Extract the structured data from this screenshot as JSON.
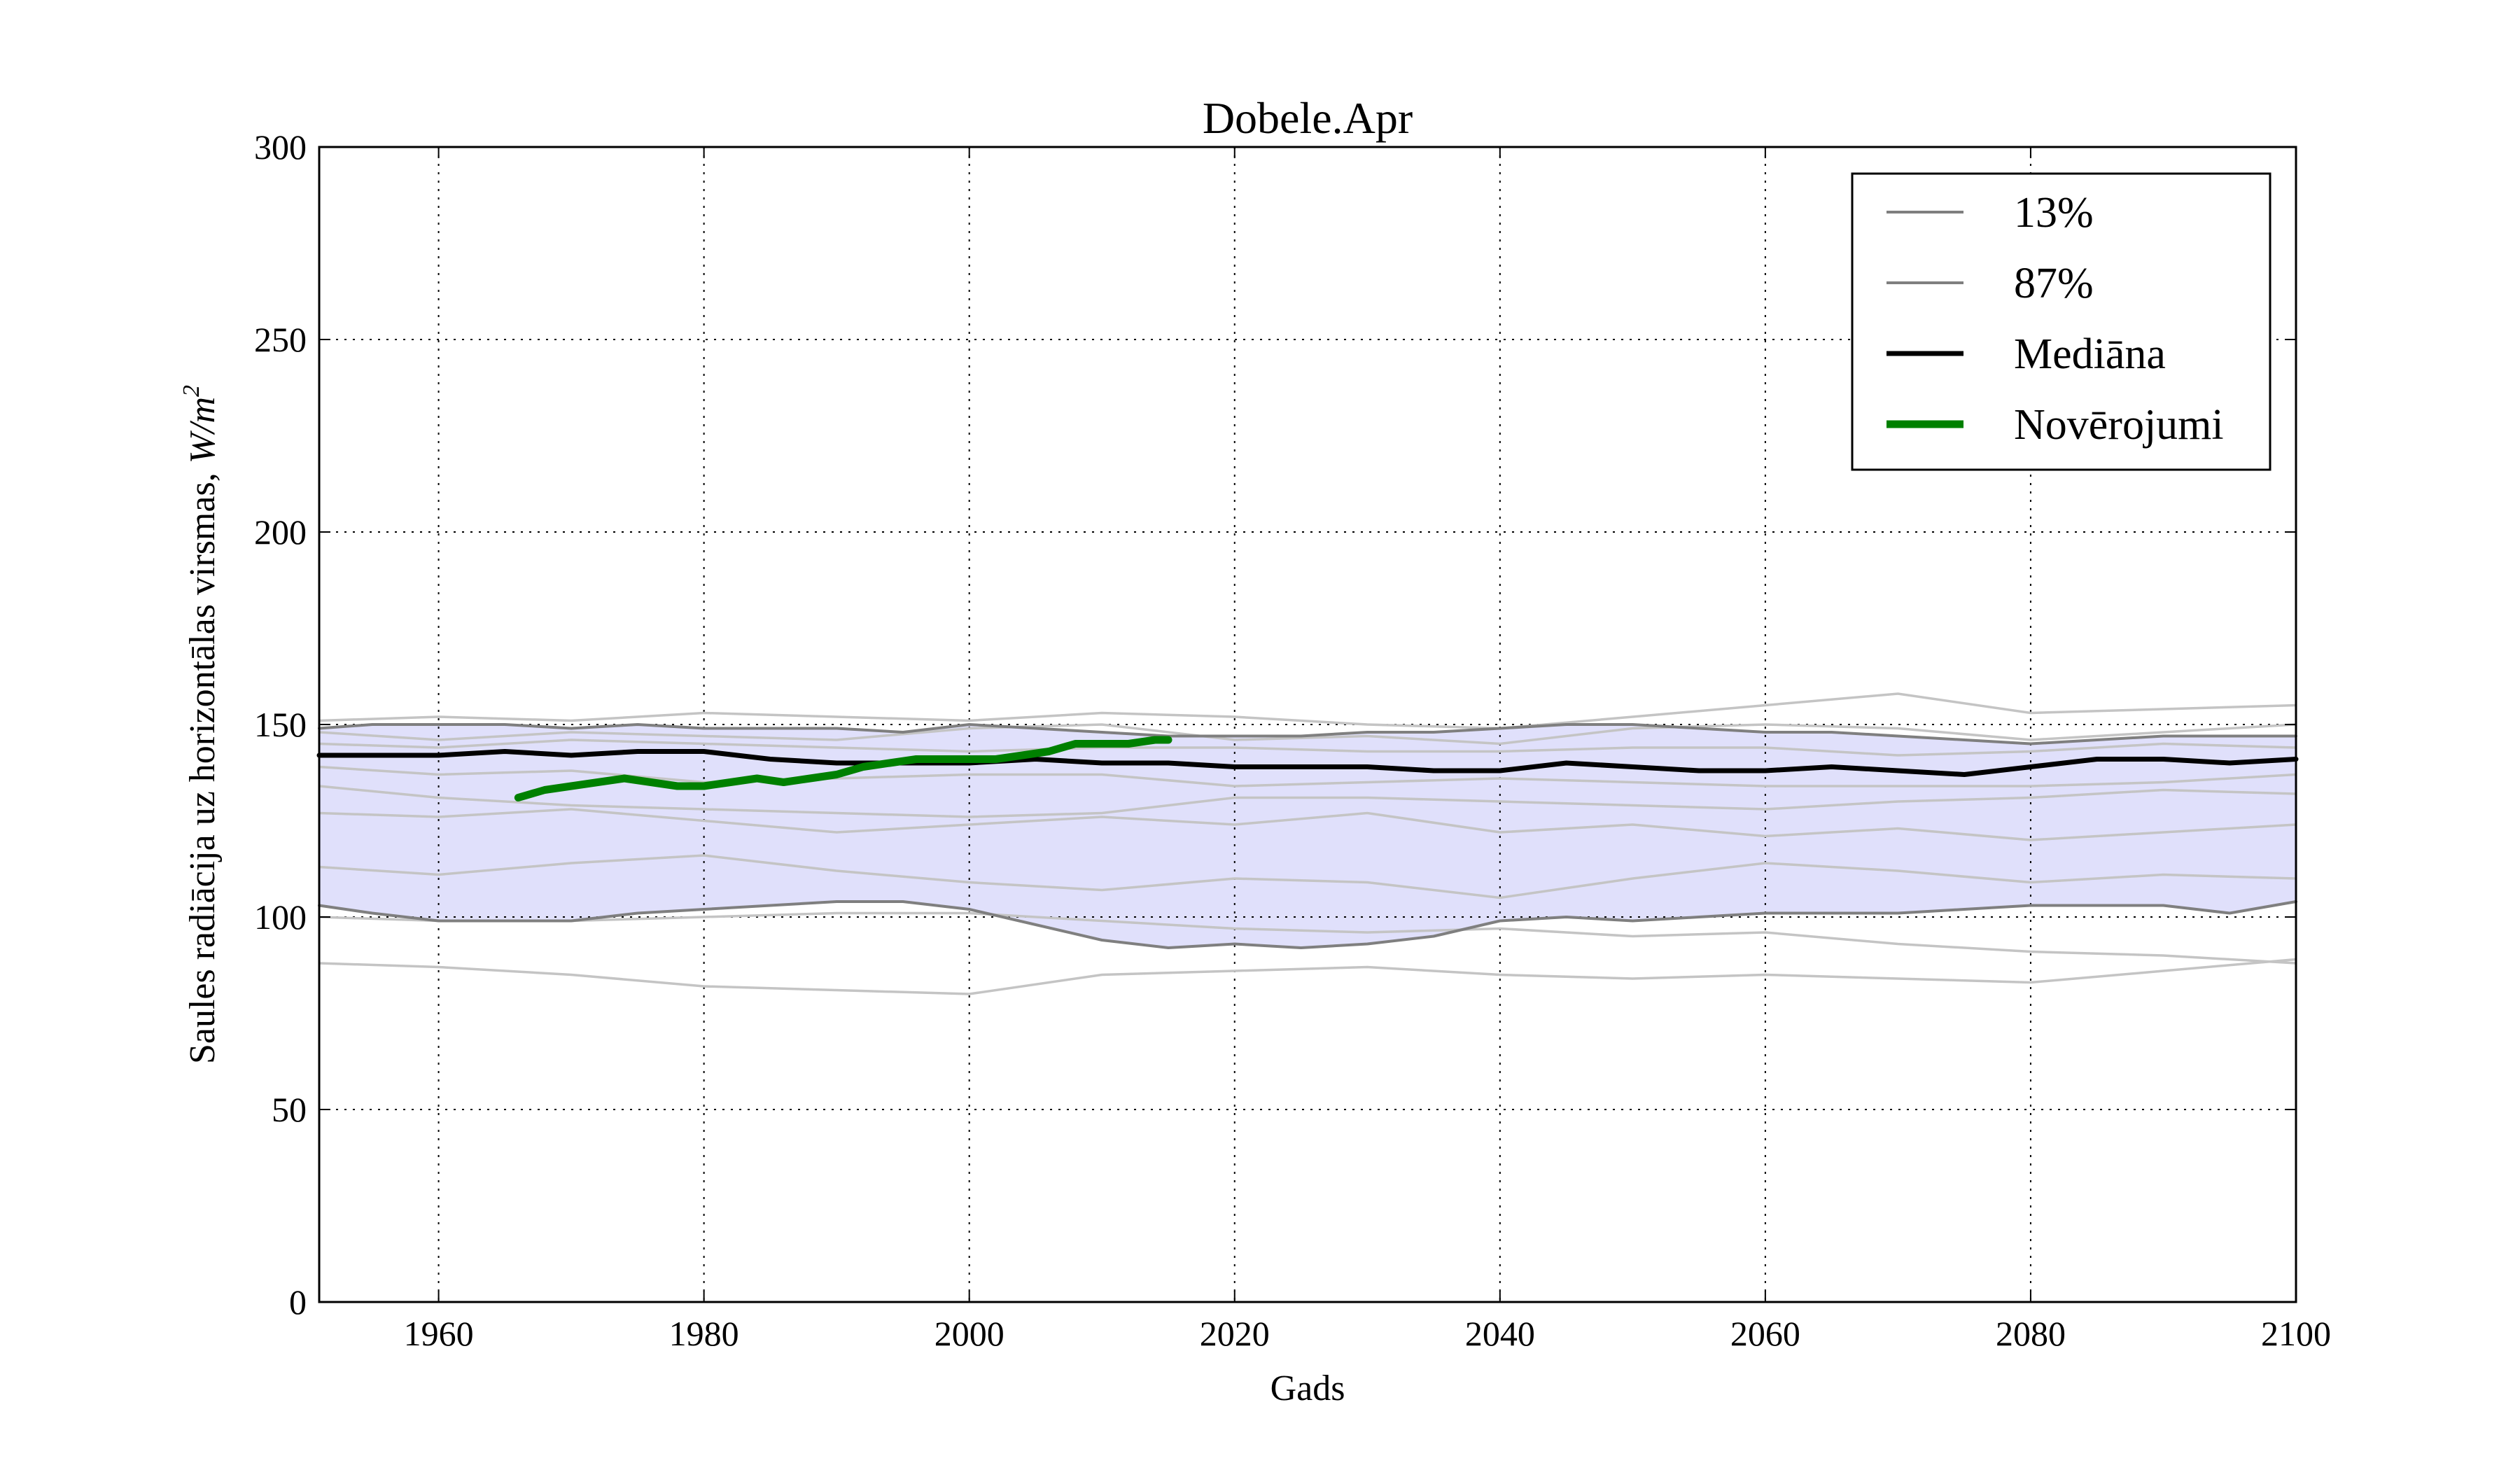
{
  "chart_data": {
    "type": "line",
    "title": "Dobele.Apr",
    "xlabel": "Gads",
    "ylabel": "Saules radiācija uz horizontālas virsmas, ",
    "ylabel_unit": "W/m",
    "ylabel_unit_exp": "2",
    "xlim": [
      1951,
      2100
    ],
    "ylim": [
      0,
      300
    ],
    "xticks": [
      "1960",
      "1980",
      "2000",
      "2020",
      "2040",
      "2060",
      "2080",
      "2100"
    ],
    "yticks": [
      "0",
      "50",
      "100",
      "150",
      "200",
      "250",
      "300"
    ],
    "grid": true,
    "legend_position": "top-right",
    "colors": {
      "band": "#e0e0fb",
      "percentile": "#7f7f7f",
      "median": "#000000",
      "observations": "#008000",
      "ensemble": "#c4c4c4"
    },
    "legend": [
      "13%",
      "87%",
      "Mediāna",
      "Novērojumi"
    ],
    "band_x": [
      1951,
      1955,
      1960,
      1965,
      1970,
      1975,
      1980,
      1985,
      1990,
      1995,
      2000,
      2005,
      2010,
      2015,
      2020,
      2025,
      2030,
      2035,
      2040,
      2045,
      2050,
      2055,
      2060,
      2065,
      2070,
      2075,
      2080,
      2085,
      2090,
      2095,
      2100
    ],
    "band_low": [
      103,
      101,
      99,
      99,
      99,
      101,
      102,
      103,
      104,
      104,
      102,
      98,
      94,
      92,
      93,
      92,
      93,
      95,
      99,
      100,
      99,
      100,
      101,
      101,
      101,
      102,
      103,
      103,
      103,
      101,
      104
    ],
    "band_high": [
      149,
      150,
      150,
      150,
      149,
      150,
      149,
      149,
      149,
      148,
      150,
      149,
      148,
      147,
      147,
      147,
      148,
      148,
      149,
      150,
      150,
      149,
      148,
      148,
      147,
      146,
      145,
      146,
      147,
      147,
      147
    ],
    "series": [
      {
        "name": "13%",
        "x": [
          1951,
          1955,
          1960,
          1965,
          1970,
          1975,
          1980,
          1985,
          1990,
          1995,
          2000,
          2005,
          2010,
          2015,
          2020,
          2025,
          2030,
          2035,
          2040,
          2045,
          2050,
          2055,
          2060,
          2065,
          2070,
          2075,
          2080,
          2085,
          2090,
          2095,
          2100
        ],
        "values": [
          103,
          101,
          99,
          99,
          99,
          101,
          102,
          103,
          104,
          104,
          102,
          98,
          94,
          92,
          93,
          92,
          93,
          95,
          99,
          100,
          99,
          100,
          101,
          101,
          101,
          102,
          103,
          103,
          103,
          101,
          104
        ]
      },
      {
        "name": "87%",
        "x": [
          1951,
          1955,
          1960,
          1965,
          1970,
          1975,
          1980,
          1985,
          1990,
          1995,
          2000,
          2005,
          2010,
          2015,
          2020,
          2025,
          2030,
          2035,
          2040,
          2045,
          2050,
          2055,
          2060,
          2065,
          2070,
          2075,
          2080,
          2085,
          2090,
          2095,
          2100
        ],
        "values": [
          149,
          150,
          150,
          150,
          149,
          150,
          149,
          149,
          149,
          148,
          150,
          149,
          148,
          147,
          147,
          147,
          148,
          148,
          149,
          150,
          150,
          149,
          148,
          148,
          147,
          146,
          145,
          146,
          147,
          147,
          147
        ]
      },
      {
        "name": "Mediāna",
        "x": [
          1951,
          1955,
          1960,
          1965,
          1970,
          1975,
          1980,
          1985,
          1990,
          1995,
          2000,
          2005,
          2010,
          2015,
          2020,
          2025,
          2030,
          2035,
          2040,
          2045,
          2050,
          2055,
          2060,
          2065,
          2070,
          2075,
          2080,
          2085,
          2090,
          2095,
          2100
        ],
        "values": [
          142,
          142,
          142,
          143,
          142,
          143,
          143,
          141,
          140,
          140,
          140,
          141,
          140,
          140,
          139,
          139,
          139,
          138,
          138,
          140,
          139,
          138,
          138,
          139,
          138,
          137,
          139,
          141,
          141,
          140,
          141
        ]
      },
      {
        "name": "Novērojumi",
        "x": [
          1966,
          1968,
          1970,
          1972,
          1974,
          1976,
          1978,
          1980,
          1982,
          1984,
          1986,
          1988,
          1990,
          1992,
          1994,
          1996,
          1998,
          2000,
          2002,
          2004,
          2006,
          2008,
          2010,
          2012,
          2014,
          2015
        ],
        "values": [
          131,
          133,
          134,
          135,
          136,
          135,
          134,
          134,
          135,
          136,
          135,
          136,
          137,
          139,
          140,
          141,
          141,
          141,
          141,
          142,
          143,
          145,
          145,
          145,
          146,
          146
        ]
      }
    ],
    "ensemble": [
      {
        "x": [
          1951,
          1960,
          1970,
          1980,
          1990,
          2000,
          2010,
          2020,
          2030,
          2040,
          2050,
          2060,
          2070,
          2080,
          2090,
          2100
        ],
        "values": [
          88,
          87,
          85,
          82,
          81,
          80,
          85,
          86,
          87,
          85,
          84,
          85,
          84,
          83,
          86,
          89
        ]
      },
      {
        "x": [
          1951,
          1960,
          1970,
          1980,
          1990,
          2000,
          2010,
          2020,
          2030,
          2040,
          2050,
          2060,
          2070,
          2080,
          2090,
          2100
        ],
        "values": [
          100,
          99,
          99,
          100,
          101,
          101,
          99,
          97,
          96,
          97,
          95,
          96,
          93,
          91,
          90,
          88
        ]
      },
      {
        "x": [
          1951,
          1960,
          1970,
          1980,
          1990,
          2000,
          2010,
          2020,
          2030,
          2040,
          2050,
          2060,
          2070,
          2080,
          2090,
          2100
        ],
        "values": [
          113,
          111,
          114,
          116,
          112,
          109,
          107,
          110,
          109,
          105,
          110,
          114,
          112,
          109,
          111,
          110
        ]
      },
      {
        "x": [
          1951,
          1960,
          1970,
          1980,
          1990,
          2000,
          2010,
          2020,
          2030,
          2040,
          2050,
          2060,
          2070,
          2080,
          2090,
          2100
        ],
        "values": [
          127,
          126,
          128,
          125,
          122,
          124,
          126,
          124,
          127,
          122,
          124,
          121,
          123,
          120,
          122,
          124
        ]
      },
      {
        "x": [
          1951,
          1960,
          1970,
          1980,
          1990,
          2000,
          2010,
          2020,
          2030,
          2040,
          2050,
          2060,
          2070,
          2080,
          2090,
          2100
        ],
        "values": [
          134,
          131,
          129,
          128,
          127,
          126,
          127,
          131,
          131,
          130,
          129,
          128,
          130,
          131,
          133,
          132
        ]
      },
      {
        "x": [
          1951,
          1960,
          1970,
          1980,
          1990,
          2000,
          2010,
          2020,
          2030,
          2040,
          2050,
          2060,
          2070,
          2080,
          2090,
          2100
        ],
        "values": [
          139,
          137,
          138,
          135,
          136,
          137,
          137,
          134,
          135,
          136,
          135,
          134,
          134,
          134,
          135,
          137
        ]
      },
      {
        "x": [
          1951,
          1960,
          1970,
          1980,
          1990,
          2000,
          2010,
          2020,
          2030,
          2040,
          2050,
          2060,
          2070,
          2080,
          2090,
          2100
        ],
        "values": [
          145,
          144,
          146,
          145,
          144,
          143,
          144,
          144,
          143,
          143,
          144,
          144,
          142,
          143,
          145,
          144
        ]
      },
      {
        "x": [
          1951,
          1960,
          1970,
          1980,
          1990,
          2000,
          2010,
          2020,
          2030,
          2040,
          2050,
          2060,
          2070,
          2080,
          2090,
          2100
        ],
        "values": [
          151,
          152,
          151,
          153,
          152,
          151,
          153,
          152,
          150,
          149,
          152,
          155,
          158,
          153,
          154,
          155
        ]
      },
      {
        "x": [
          1951,
          1960,
          1970,
          1980,
          1990,
          2000,
          2010,
          2020,
          2030,
          2040,
          2050,
          2060,
          2070,
          2080,
          2090,
          2100
        ],
        "values": [
          148,
          146,
          148,
          147,
          146,
          149,
          150,
          146,
          147,
          145,
          149,
          150,
          149,
          146,
          148,
          150
        ]
      }
    ]
  }
}
